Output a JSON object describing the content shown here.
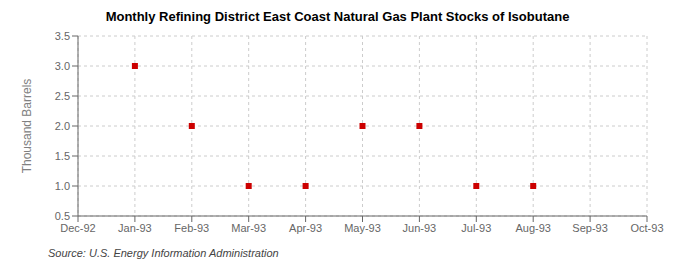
{
  "chart_data": {
    "type": "scatter",
    "title": "Monthly Refining District East Coast Natural Gas Plant Stocks of Isobutane",
    "y_label": "Thousand Barrels",
    "annotation": "Source: U.S. Energy Information Administration",
    "categories": [
      "Dec-92",
      "Jan-93",
      "Feb-93",
      "Mar-93",
      "Apr-93",
      "May-93",
      "Jun-93",
      "Jul-93",
      "Aug-93",
      "Sep-93",
      "Oct-93"
    ],
    "values": [
      null,
      3.0,
      2.0,
      1.0,
      1.0,
      2.0,
      2.0,
      1.0,
      1.0,
      null,
      null
    ],
    "color": "#cc0000",
    "marker": "square",
    "ylim": [
      0.5,
      3.5
    ],
    "yticks": [
      0.5,
      {
        "value": 1.0,
        "label": "1.0"
      },
      1.5,
      {
        "value": 2.0,
        "label": "2.0"
      },
      2.5,
      {
        "value": 3.0,
        "label": "3.0"
      },
      3.5
    ],
    "grid": true
  }
}
